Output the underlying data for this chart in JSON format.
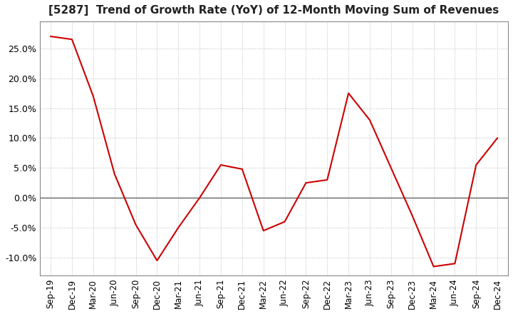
{
  "title": "[5287]  Trend of Growth Rate (YoY) of 12-Month Moving Sum of Revenues",
  "title_fontsize": 11,
  "line_color": "#cc0000",
  "background_color": "#ffffff",
  "grid_color": "#bbbbbb",
  "zero_line_color": "#555555",
  "labels": [
    "Sep-19",
    "Dec-19",
    "Mar-20",
    "Jun-20",
    "Sep-20",
    "Dec-20",
    "Mar-21",
    "Jun-21",
    "Sep-21",
    "Dec-21",
    "Mar-22",
    "Jun-22",
    "Sep-22",
    "Dec-22",
    "Mar-23",
    "Jun-23",
    "Sep-23",
    "Dec-23",
    "Mar-24",
    "Jun-24",
    "Sep-24",
    "Dec-24"
  ],
  "values": [
    0.27,
    0.265,
    0.17,
    0.04,
    -0.045,
    -0.105,
    -0.05,
    0.0,
    0.055,
    0.048,
    -0.055,
    -0.04,
    0.025,
    0.03,
    0.175,
    0.13,
    0.05,
    -0.03,
    -0.115,
    -0.11,
    0.055,
    0.1
  ],
  "ylim": [
    -0.13,
    0.295
  ],
  "yticks": [
    -0.1,
    -0.05,
    0.0,
    0.05,
    0.1,
    0.15,
    0.2,
    0.25
  ],
  "figsize": [
    7.2,
    4.4
  ],
  "dpi": 100
}
